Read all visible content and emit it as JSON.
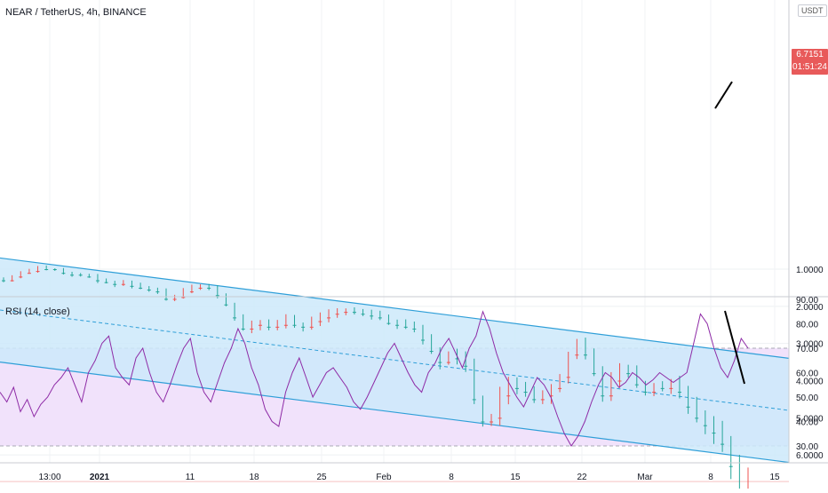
{
  "price_title": "NEAR / TetherUS, 4h, BINANCE",
  "rsi_title": "RSI (14, close)",
  "currency_badge": "USDT",
  "last_price": "6.7151",
  "countdown": "01:51:24",
  "colors": {
    "up": "#26a69a",
    "down": "#ef5350",
    "channel_line": "#2f9fd8",
    "channel_fill": "#cde9fa",
    "rsi_line": "#8e2ba6",
    "rsi_band": "#f1e2fb",
    "last_price_tag": "#e85a5a"
  },
  "chart_data": [
    {
      "type": "candlestick",
      "title": "NEAR / TetherUS, 4h, BINANCE",
      "x_tick_labels": [
        "13:00",
        "2021",
        "11",
        "18",
        "25",
        "Feb",
        "8",
        "15",
        "22",
        "Mar",
        "8",
        "15"
      ],
      "y_tick_labels": [
        "1.0000",
        "2.0000",
        "3.0000",
        "4.0000",
        "5.0000",
        "6.0000",
        "7.0000"
      ],
      "y_axis_top_label_partial": "8",
      "ylim": [
        0.3,
        7.5
      ],
      "log_scale": false,
      "grid": true,
      "close_series": [
        [
          1.3,
          1.2,
          1.1,
          1.05,
          0.95,
          1.0,
          1.0,
          1.1,
          1.15,
          1.15,
          1.2,
          1.3,
          1.35,
          1.4,
          1.35,
          1.45,
          1.5,
          1.55,
          1.6,
          1.8,
          1.75,
          1.6,
          1.5,
          1.45,
          1.5,
          1.7,
          1.95,
          2.3,
          2.6,
          2.5,
          2.45,
          2.55,
          2.5,
          2.3,
          2.5,
          2.55,
          2.4,
          2.3
        ],
        [
          2.2,
          2.15,
          2.1,
          2.15,
          2.2,
          2.25,
          2.3,
          2.45,
          2.5,
          2.55,
          2.6,
          2.9,
          3.2,
          3.5,
          3.3,
          3.4,
          3.6,
          4.5,
          5.1,
          5.0,
          4.4,
          4.0,
          4.2,
          4.3,
          4.5,
          4.4,
          4.2,
          3.9,
          3.3,
          2.95,
          3.3,
          3.8,
          4.4,
          4.0,
          3.7,
          3.8,
          4.1,
          4.3,
          4.2,
          4.2
        ],
        [
          4.1,
          4.3,
          4.7,
          5.0,
          5.2,
          5.4,
          5.7,
          6.3,
          7.0,
          6.72
        ]
      ],
      "channel": {
        "upper": [
          3.5,
          6.2
        ],
        "middle": [
          2.1,
          4.8
        ],
        "lower": [
          0.7,
          3.4
        ]
      },
      "current_price": 6.7151
    },
    {
      "type": "line",
      "title": "RSI (14, close)",
      "y_tick_labels": [
        "30.00",
        "40.00",
        "50.00",
        "60.00",
        "70.00",
        "80.00",
        "90.00"
      ],
      "ylim": [
        25,
        92
      ],
      "bands": [
        30,
        70
      ],
      "series": [
        {
          "values": [
            52,
            48,
            54,
            44,
            49,
            42,
            47,
            50,
            55,
            58,
            62,
            55,
            48,
            60,
            65,
            72,
            75,
            62,
            58,
            55,
            66,
            70,
            60,
            52,
            48,
            55,
            63,
            70,
            74,
            60,
            52,
            48,
            56,
            64,
            70,
            78,
            72,
            62,
            55,
            45,
            40,
            38,
            52,
            60,
            66,
            58,
            50,
            55,
            60,
            62,
            58,
            54,
            48,
            45,
            50,
            56,
            62,
            68,
            72,
            66,
            60,
            55,
            52,
            60,
            64,
            70,
            74,
            68,
            62,
            70,
            75,
            85,
            78,
            68,
            60,
            55,
            50,
            46,
            52,
            58,
            55,
            50,
            42,
            35,
            30,
            34,
            40,
            48,
            55,
            60,
            58,
            54,
            56,
            60,
            58,
            55,
            57,
            60,
            58,
            56,
            58,
            60,
            72,
            84,
            80,
            70,
            62,
            58,
            65,
            74,
            70
          ]
        }
      ]
    }
  ]
}
